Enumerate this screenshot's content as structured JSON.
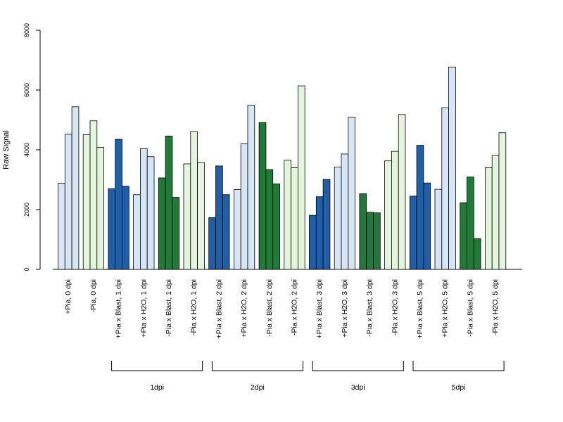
{
  "chart_data": {
    "type": "bar",
    "title": "",
    "xlabel": "",
    "ylabel": "Raw Signal",
    "ylim": [
      0,
      8000
    ],
    "yticks": [
      "0",
      "2000",
      "4000",
      "6000",
      "8000"
    ],
    "grid": false,
    "legend": "none",
    "colors": {
      "light_blue": "#d6e6f5",
      "light_green": "#e3f5dc",
      "dark_blue": "#1f5fa8",
      "dark_green": "#217a38"
    },
    "groups": [
      {
        "label": "+Pia, 0 dpi",
        "color": "light_blue",
        "values": [
          2880,
          4520,
          5440
        ]
      },
      {
        "label": "-Pia, 0 dpi",
        "color": "light_green",
        "values": [
          4510,
          4970,
          4080
        ]
      },
      {
        "label": "+Pia x Blast, 1 dpi",
        "color": "dark_blue",
        "values": [
          2700,
          4350,
          2780
        ]
      },
      {
        "label": "+Pia x H2O, 1 dpi",
        "color": "light_blue",
        "values": [
          2500,
          4040,
          3770
        ]
      },
      {
        "label": "-Pia x Blast, 1 dpi",
        "color": "dark_green",
        "values": [
          3060,
          4460,
          2410
        ]
      },
      {
        "label": "-Pia x H2O, 1 dpi",
        "color": "light_green",
        "values": [
          3530,
          4610,
          3570
        ]
      },
      {
        "label": "+Pia x Blast, 2 dpi",
        "color": "dark_blue",
        "values": [
          1730,
          3460,
          2500
        ]
      },
      {
        "label": "+Pia x H2O, 2 dpi",
        "color": "light_blue",
        "values": [
          2670,
          4200,
          5490
        ]
      },
      {
        "label": "-Pia x Blast, 2 dpi",
        "color": "dark_green",
        "values": [
          4910,
          3340,
          2860
        ]
      },
      {
        "label": "-Pia x H2O, 2 dpi",
        "color": "light_green",
        "values": [
          3650,
          3400,
          6140
        ]
      },
      {
        "label": "+Pia x Blast, 3 dpi",
        "color": "dark_blue",
        "values": [
          1810,
          2430,
          3010
        ]
      },
      {
        "label": "+Pia x H2O, 3 dpi",
        "color": "light_blue",
        "values": [
          3420,
          3860,
          5090
        ]
      },
      {
        "label": "-Pia x Blast, 3 dpi",
        "color": "dark_green",
        "values": [
          2530,
          1910,
          1890
        ]
      },
      {
        "label": "-Pia x H2O, 3 dpi",
        "color": "light_green",
        "values": [
          3630,
          3950,
          5180
        ]
      },
      {
        "label": "+Pia x Blast, 5 dpi",
        "color": "dark_blue",
        "values": [
          2450,
          4150,
          2890
        ]
      },
      {
        "label": "+Pia x H2O, 5 dpi",
        "color": "light_blue",
        "values": [
          2680,
          5410,
          6770
        ]
      },
      {
        "label": "-Pia x Blast, 5 dpi",
        "color": "dark_green",
        "values": [
          2230,
          3090,
          1030
        ]
      },
      {
        "label": "-Pia x H2O, 5 dpi",
        "color": "light_green",
        "values": [
          3400,
          3810,
          4570
        ]
      }
    ],
    "brackets": [
      {
        "label": "1dpi",
        "from_group": 2,
        "to_group": 5
      },
      {
        "label": "2dpi",
        "from_group": 6,
        "to_group": 9
      },
      {
        "label": "3dpi",
        "from_group": 10,
        "to_group": 13
      },
      {
        "label": "5dpi",
        "from_group": 14,
        "to_group": 17
      }
    ]
  }
}
